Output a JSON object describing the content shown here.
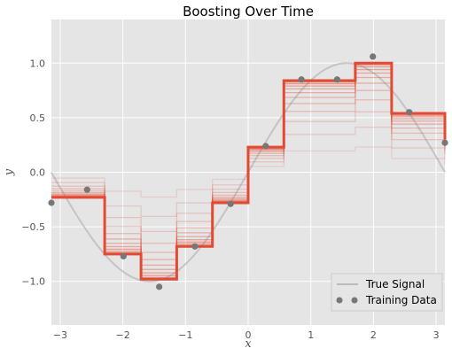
{
  "chart_data": {
    "type": "line",
    "title": "Boosting Over Time",
    "xlabel": "x",
    "ylabel": "y",
    "xlim": [
      -3.14,
      3.14
    ],
    "ylim": [
      -1.4,
      1.4
    ],
    "xticks": [
      -3,
      -2,
      -1,
      0,
      1,
      2,
      3
    ],
    "yticks": [
      -1.0,
      -0.5,
      0.0,
      0.5,
      1.0
    ],
    "xtick_labels": [
      "−3",
      "−2",
      "−1",
      "0",
      "1",
      "2",
      "3"
    ],
    "ytick_labels": [
      "−1.0",
      "−0.5",
      "0.0",
      "0.5",
      "1.0"
    ],
    "grid": true,
    "legend": {
      "position": "bottom-right",
      "entries": [
        {
          "label": "True Signal",
          "type": "line",
          "color": "#bbbbbb"
        },
        {
          "label": "Training Data",
          "type": "marker",
          "color": "#777777"
        }
      ]
    },
    "true_signal": {
      "function": "sin(x)",
      "color": "#bbbbbb"
    },
    "training_data": {
      "color": "#777777",
      "x": [
        -3.14,
        -2.57,
        -1.99,
        -1.42,
        -0.85,
        -0.28,
        0.28,
        0.85,
        1.42,
        1.99,
        2.57,
        3.14
      ],
      "y": [
        -0.28,
        -0.16,
        -0.77,
        -1.05,
        -0.68,
        -0.29,
        0.24,
        0.85,
        0.85,
        1.06,
        0.55,
        0.27
      ]
    },
    "boosting": {
      "color": "#e24a33",
      "iterations": 12,
      "breaks": [
        -3.14,
        -2.29,
        -1.71,
        -1.14,
        -0.57,
        0.0,
        0.57,
        1.71,
        2.29,
        3.14
      ],
      "final_values": [
        -0.23,
        -0.75,
        -0.98,
        -0.68,
        -0.28,
        0.23,
        0.84,
        1.0,
        0.54,
        0.3
      ]
    }
  }
}
